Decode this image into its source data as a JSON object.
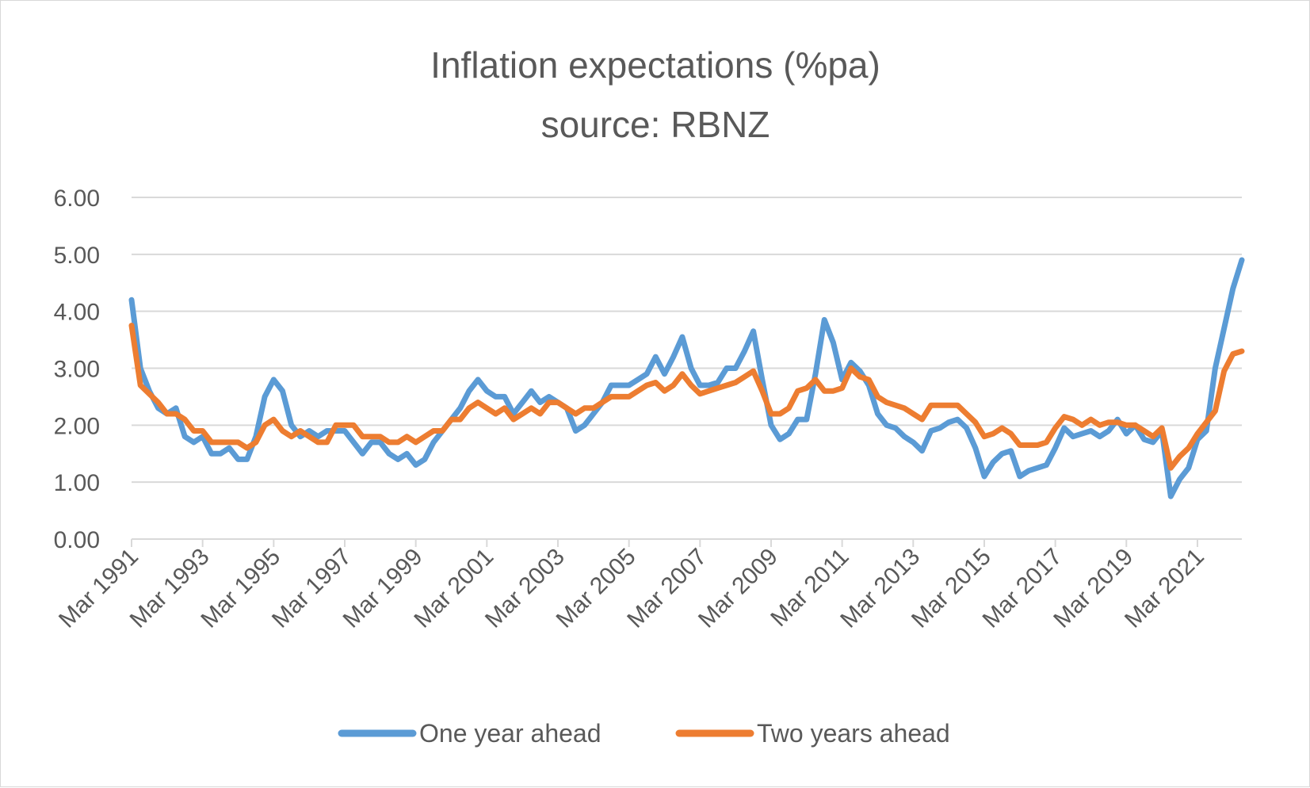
{
  "chart_data": {
    "type": "line",
    "title": "Inflation expectations (%pa)",
    "subtitle": "source: RBNZ",
    "xlabel": "",
    "ylabel": "",
    "ylim": [
      0,
      6
    ],
    "yticks": [
      "0.00",
      "1.00",
      "2.00",
      "3.00",
      "4.00",
      "5.00",
      "6.00"
    ],
    "xticks": [
      "Mar 1991",
      "Mar 1993",
      "Mar 1995",
      "Mar 1997",
      "Mar 1999",
      "Mar 2001",
      "Mar 2003",
      "Mar 2005",
      "Mar 2007",
      "Mar 2009",
      "Mar 2011",
      "Mar 2013",
      "Mar 2015",
      "Mar 2017",
      "Mar 2019",
      "Mar 2021"
    ],
    "grid": true,
    "legend_position": "bottom",
    "colors": {
      "one_year": "#5b9bd5",
      "two_year": "#ed7d31",
      "grid": "#d9d9d9",
      "text": "#595959"
    },
    "series": [
      {
        "name": "One year ahead",
        "values": [
          4.2,
          3.0,
          2.6,
          2.3,
          2.2,
          2.3,
          1.8,
          1.7,
          1.8,
          1.5,
          1.5,
          1.6,
          1.4,
          1.4,
          1.8,
          2.5,
          2.8,
          2.6,
          2.0,
          1.8,
          1.9,
          1.8,
          1.9,
          1.9,
          1.9,
          1.7,
          1.5,
          1.7,
          1.7,
          1.5,
          1.4,
          1.5,
          1.3,
          1.4,
          1.7,
          1.9,
          2.1,
          2.3,
          2.6,
          2.8,
          2.6,
          2.5,
          2.5,
          2.2,
          2.4,
          2.6,
          2.4,
          2.5,
          2.4,
          2.3,
          1.9,
          2.0,
          2.2,
          2.4,
          2.7,
          2.7,
          2.7,
          2.8,
          2.9,
          3.2,
          2.9,
          3.2,
          3.55,
          3.0,
          2.7,
          2.7,
          2.75,
          3.0,
          3.0,
          3.3,
          3.65,
          2.8,
          2.0,
          1.75,
          1.85,
          2.1,
          2.1,
          2.9,
          3.85,
          3.45,
          2.8,
          3.1,
          2.95,
          2.7,
          2.2,
          2.0,
          1.95,
          1.8,
          1.7,
          1.55,
          1.9,
          1.95,
          2.05,
          2.1,
          1.95,
          1.6,
          1.1,
          1.35,
          1.5,
          1.55,
          1.1,
          1.2,
          1.25,
          1.3,
          1.6,
          1.95,
          1.8,
          1.85,
          1.9,
          1.8,
          1.9,
          2.1,
          1.85,
          2.0,
          1.75,
          1.7,
          1.9,
          0.75,
          1.05,
          1.25,
          1.75,
          1.9,
          3.0,
          3.7,
          4.4,
          4.9
        ]
      },
      {
        "name": "Two years ahead",
        "values": [
          3.75,
          2.7,
          2.55,
          2.4,
          2.2,
          2.2,
          2.1,
          1.9,
          1.9,
          1.7,
          1.7,
          1.7,
          1.7,
          1.6,
          1.7,
          2.0,
          2.1,
          1.9,
          1.8,
          1.9,
          1.8,
          1.7,
          1.7,
          2.0,
          2.0,
          2.0,
          1.8,
          1.8,
          1.8,
          1.7,
          1.7,
          1.8,
          1.7,
          1.8,
          1.9,
          1.9,
          2.1,
          2.1,
          2.3,
          2.4,
          2.3,
          2.2,
          2.3,
          2.1,
          2.2,
          2.3,
          2.2,
          2.4,
          2.4,
          2.3,
          2.2,
          2.3,
          2.3,
          2.4,
          2.5,
          2.5,
          2.5,
          2.6,
          2.7,
          2.75,
          2.6,
          2.7,
          2.9,
          2.7,
          2.55,
          2.6,
          2.65,
          2.7,
          2.75,
          2.85,
          2.95,
          2.6,
          2.2,
          2.2,
          2.3,
          2.6,
          2.65,
          2.8,
          2.6,
          2.6,
          2.65,
          3.0,
          2.85,
          2.8,
          2.5,
          2.4,
          2.35,
          2.3,
          2.2,
          2.1,
          2.35,
          2.35,
          2.35,
          2.35,
          2.2,
          2.05,
          1.8,
          1.85,
          1.95,
          1.85,
          1.65,
          1.65,
          1.65,
          1.7,
          1.95,
          2.15,
          2.1,
          2.0,
          2.1,
          2.0,
          2.05,
          2.05,
          2.0,
          2.0,
          1.9,
          1.8,
          1.95,
          1.25,
          1.45,
          1.6,
          1.85,
          2.05,
          2.25,
          2.95,
          3.25,
          3.3
        ]
      }
    ]
  }
}
